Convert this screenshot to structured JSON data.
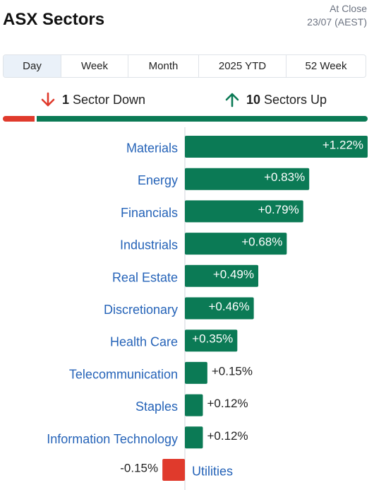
{
  "header": {
    "title": "ASX Sectors",
    "status": "At Close",
    "date": "23/07 (AEST)"
  },
  "tabs": [
    {
      "label": "Day",
      "active": true
    },
    {
      "label": "Week",
      "active": false
    },
    {
      "label": "Month",
      "active": false
    },
    {
      "label": "2025 YTD",
      "active": false
    },
    {
      "label": "52 Week",
      "active": false
    }
  ],
  "summary": {
    "down_count": "1",
    "down_label": "Sector Down",
    "up_count": "10",
    "up_label": "Sectors Up"
  },
  "colors": {
    "positive": "#0b7a55",
    "negative": "#e03a2c",
    "label": "#2563b8"
  },
  "chart_data": {
    "type": "bar",
    "orientation": "horizontal",
    "categories": [
      "Materials",
      "Energy",
      "Financials",
      "Industrials",
      "Real Estate",
      "Discretionary",
      "Health Care",
      "Telecommunication",
      "Staples",
      "Information Technology",
      "Utilities"
    ],
    "values": [
      1.22,
      0.83,
      0.79,
      0.68,
      0.49,
      0.46,
      0.35,
      0.15,
      0.12,
      0.12,
      -0.15
    ],
    "labels": [
      "+1.22%",
      "+0.83%",
      "+0.79%",
      "+0.68%",
      "+0.49%",
      "+0.46%",
      "+0.35%",
      "+0.15%",
      "+0.12%",
      "+0.12%",
      "-0.15%"
    ]
  }
}
